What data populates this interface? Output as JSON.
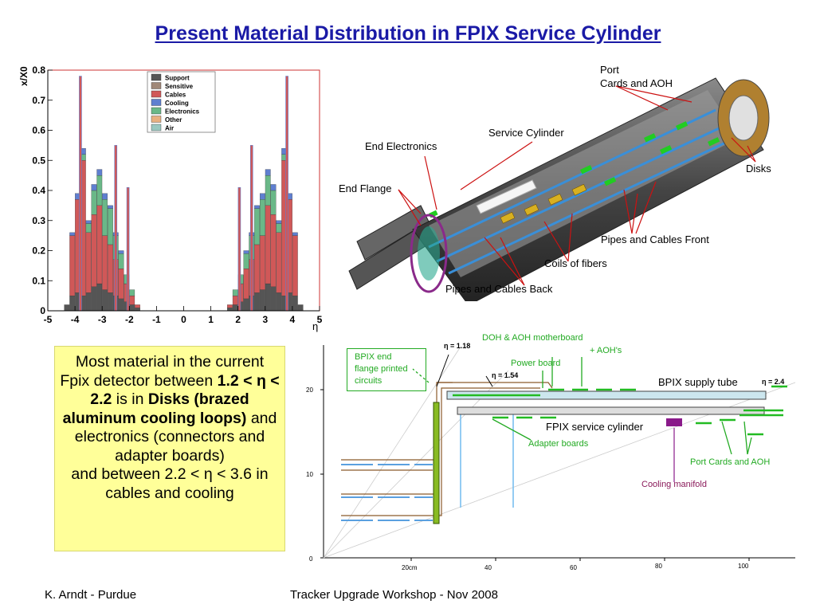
{
  "title": "Present Material Distribution in FPIX Service Cylinder",
  "chart_data": {
    "type": "area",
    "ylabel": "x/X0",
    "xlabel": "η",
    "xlim": [
      -5,
      5
    ],
    "ylim": [
      0,
      0.8
    ],
    "x_ticks": [
      "-5",
      "-4",
      "-3",
      "-2",
      "-1",
      "0",
      "1",
      "2",
      "3",
      "4",
      "5"
    ],
    "y_ticks": [
      "0",
      "0.1",
      "0.2",
      "0.3",
      "0.4",
      "0.5",
      "0.6",
      "0.7",
      "0.8"
    ],
    "legend_position": "top-right",
    "colors": {
      "Support": "#555555",
      "Sensitive": "#a08878",
      "Cables": "#d05858",
      "Cooling": "#5f7fd0",
      "Electronics": "#6ab888",
      "Other": "#e8b080",
      "Air": "#9ac8c0"
    },
    "series": [
      {
        "name": "Support",
        "x": [
          -4.3,
          -4.1,
          -3.9,
          -3.7,
          -3.5,
          -3.3,
          -3.1,
          -2.9,
          -2.7,
          -2.5,
          -2.3,
          -2.1,
          -1.9,
          -1.7,
          -1.5,
          1.5,
          1.7,
          1.9,
          2.1,
          2.3,
          2.5,
          2.7,
          2.9,
          3.1,
          3.3,
          3.5,
          3.7,
          3.9,
          4.1,
          4.3
        ],
        "values": [
          0.02,
          0.05,
          0.06,
          0.05,
          0.06,
          0.08,
          0.09,
          0.07,
          0.06,
          0.05,
          0.04,
          0.03,
          0.02,
          0.01,
          0.0,
          0.0,
          0.01,
          0.02,
          0.03,
          0.04,
          0.05,
          0.06,
          0.07,
          0.09,
          0.08,
          0.06,
          0.05,
          0.06,
          0.05,
          0.02
        ]
      },
      {
        "name": "Cables",
        "x": [
          -4.3,
          -4.1,
          -3.9,
          -3.7,
          -3.5,
          -3.3,
          -3.1,
          -2.9,
          -2.7,
          -2.5,
          -2.3,
          -2.1,
          -1.9,
          -1.7,
          -1.5,
          1.5,
          1.7,
          1.9,
          2.1,
          2.3,
          2.5,
          2.7,
          2.9,
          3.1,
          3.3,
          3.5,
          3.7,
          3.9,
          4.1,
          4.3
        ],
        "values": [
          0.0,
          0.2,
          0.31,
          0.45,
          0.2,
          0.24,
          0.26,
          0.18,
          0.16,
          0.12,
          0.1,
          0.06,
          0.03,
          0.01,
          0.0,
          0.0,
          0.01,
          0.03,
          0.06,
          0.1,
          0.12,
          0.16,
          0.18,
          0.26,
          0.24,
          0.2,
          0.45,
          0.31,
          0.2,
          0.0
        ]
      },
      {
        "name": "Electronics",
        "x": [
          -4.3,
          -4.1,
          -3.9,
          -3.7,
          -3.5,
          -3.3,
          -3.1,
          -2.9,
          -2.7,
          -2.5,
          -2.3,
          -2.1,
          -1.9,
          -1.7,
          -1.5,
          1.5,
          1.7,
          1.9,
          2.1,
          2.3,
          2.5,
          2.7,
          2.9,
          3.1,
          3.3,
          3.5,
          3.7,
          3.9,
          4.1,
          4.3
        ],
        "values": [
          0.0,
          0.0,
          0.0,
          0.02,
          0.03,
          0.08,
          0.1,
          0.12,
          0.12,
          0.08,
          0.05,
          0.03,
          0.02,
          0.0,
          0.0,
          0.0,
          0.0,
          0.02,
          0.03,
          0.05,
          0.08,
          0.12,
          0.12,
          0.1,
          0.08,
          0.03,
          0.02,
          0.0,
          0.0,
          0.0
        ]
      },
      {
        "name": "Cooling",
        "x": [
          -4.3,
          -4.1,
          -3.9,
          -3.7,
          -3.5,
          -3.3,
          -3.1,
          -2.9,
          -2.7,
          -2.5,
          -2.3,
          -2.1,
          -1.9,
          -1.7,
          -1.5,
          1.5,
          1.7,
          1.9,
          2.1,
          2.3,
          2.5,
          2.7,
          2.9,
          3.1,
          3.3,
          3.5,
          3.7,
          3.9,
          4.1,
          4.3
        ],
        "values": [
          0.0,
          0.01,
          0.02,
          0.02,
          0.01,
          0.02,
          0.02,
          0.02,
          0.01,
          0.01,
          0.01,
          0.0,
          0.0,
          0.0,
          0.0,
          0.0,
          0.0,
          0.0,
          0.0,
          0.01,
          0.01,
          0.01,
          0.02,
          0.02,
          0.02,
          0.01,
          0.02,
          0.02,
          0.01,
          0.0
        ]
      },
      {
        "name": "Sensitive",
        "x": [],
        "values": []
      },
      {
        "name": "Other",
        "x": [],
        "values": []
      },
      {
        "name": "Air",
        "x": [],
        "values": []
      }
    ],
    "spikes": [
      {
        "x": -3.8,
        "value": 0.78
      },
      {
        "x": -2.5,
        "value": 0.55
      },
      {
        "x": -2.05,
        "value": 0.41
      },
      {
        "x": 3.8,
        "value": 0.78
      },
      {
        "x": 2.5,
        "value": 0.55
      },
      {
        "x": 2.05,
        "value": 0.41
      }
    ]
  },
  "cylinder_labels": {
    "port": "Port",
    "cards_aoh": "Cards and AOH",
    "service_cylinder": "Service Cylinder",
    "end_electronics": "End Electronics",
    "end_flange": "End Flange",
    "disks": "Disks",
    "pipes_front": "Pipes and Cables Front",
    "coils": "Coils of fibers",
    "pipes_back": "Pipes and Cables Back"
  },
  "summary": {
    "p1": "Most material in the current Fpix detector between",
    "eta_range_1": "1.2 < η < 2.2",
    "p2": "is in",
    "disks": "Disks (brazed aluminum cooling loops)",
    "p3": "and electronics (connectors and adapter boards)",
    "p4": "and between 2.2 < η < 3.6 in cables and cooling"
  },
  "layout_diagram": {
    "y_ticks": [
      "0",
      "10",
      "20"
    ],
    "x_ticks": [
      "20cm",
      "40",
      "60",
      "80",
      "100"
    ],
    "eta_118": "η = 1.18",
    "eta_154": "η = 1.54",
    "eta_24": "η = 2.4",
    "doh_aoh_line1": "DOH & AOH motherboard",
    "doh_aoh_line2": "+ AOH's",
    "power_board": "Power board",
    "bpix_flange_1": "BPIX end",
    "bpix_flange_2": "flange printed",
    "bpix_flange_3": "circuits",
    "bpix_supply": "BPIX supply tube",
    "fpix_cyl": "FPIX service cylinder",
    "adapter_boards": "Adapter boards",
    "port_cards": "Port Cards and AOH",
    "cooling_manifold": "Cooling manifold"
  },
  "footer": {
    "author": "K. Arndt - Purdue",
    "event": "Tracker Upgrade Workshop - Nov 2008"
  }
}
